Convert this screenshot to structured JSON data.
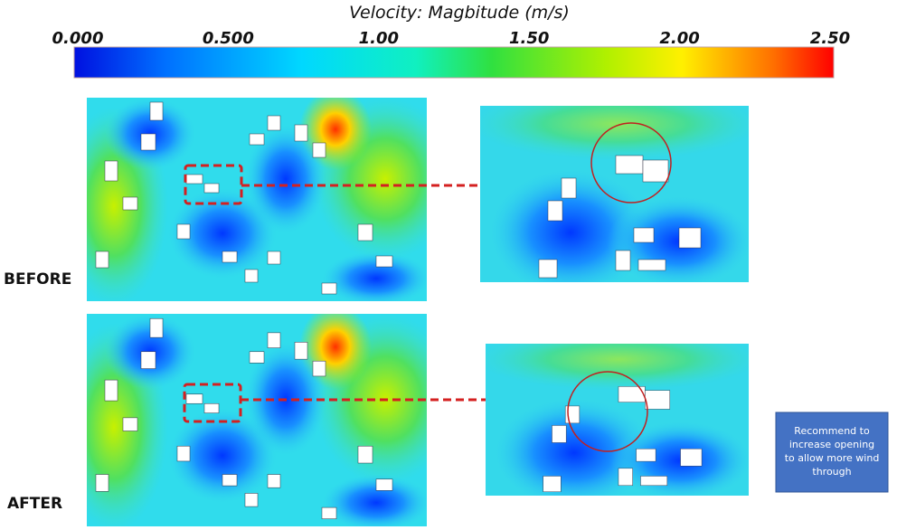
{
  "legend": {
    "title": "Velocity: Magbitude (m/s)",
    "ticks": [
      "0.000",
      "0.500",
      "1.00",
      "1.50",
      "2.00",
      "2.50"
    ]
  },
  "panels": {
    "before": "BEFORE",
    "after": "AFTER"
  },
  "note": [
    "Recommend to",
    "increase opening",
    "to allow more wind",
    "through"
  ]
}
